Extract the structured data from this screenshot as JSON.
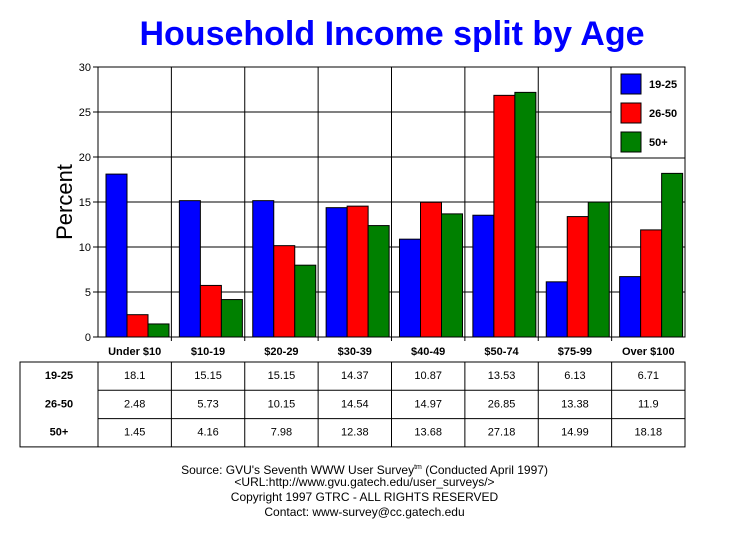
{
  "chart_data": {
    "type": "bar",
    "title": "Household Income split by Age",
    "xlabel": "",
    "ylabel": "Percent",
    "ylim": [
      0,
      30
    ],
    "yticks": [
      0,
      5,
      10,
      15,
      20,
      25,
      30
    ],
    "grid": true,
    "legend_position": "top-right",
    "categories": [
      "Under $10",
      "$10-19",
      "$20-29",
      "$30-39",
      "$40-49",
      "$50-74",
      "$75-99",
      "Over $100"
    ],
    "series": [
      {
        "name": "19-25",
        "color": "#0000ff",
        "values": [
          18.1,
          15.15,
          15.15,
          14.37,
          10.87,
          13.53,
          6.13,
          6.71
        ]
      },
      {
        "name": "26-50",
        "color": "#ff0000",
        "values": [
          2.48,
          5.73,
          10.15,
          14.54,
          14.97,
          26.85,
          13.38,
          11.9
        ]
      },
      {
        "name": "50+",
        "color": "#008000",
        "values": [
          1.45,
          4.16,
          7.98,
          12.38,
          13.68,
          27.18,
          14.99,
          18.18
        ]
      }
    ]
  },
  "footer": {
    "source_prefix": "Source: GVU's Seventh WWW User Survey",
    "source_sup": "tm",
    "source_suffix": " (Conducted April 1997)",
    "url": "<URL:http://www.gvu.gatech.edu/user_surveys/>",
    "copyright": "Copyright 1997 GTRC - ALL RIGHTS RESERVED",
    "contact": "Contact: www-survey@cc.gatech.edu"
  }
}
